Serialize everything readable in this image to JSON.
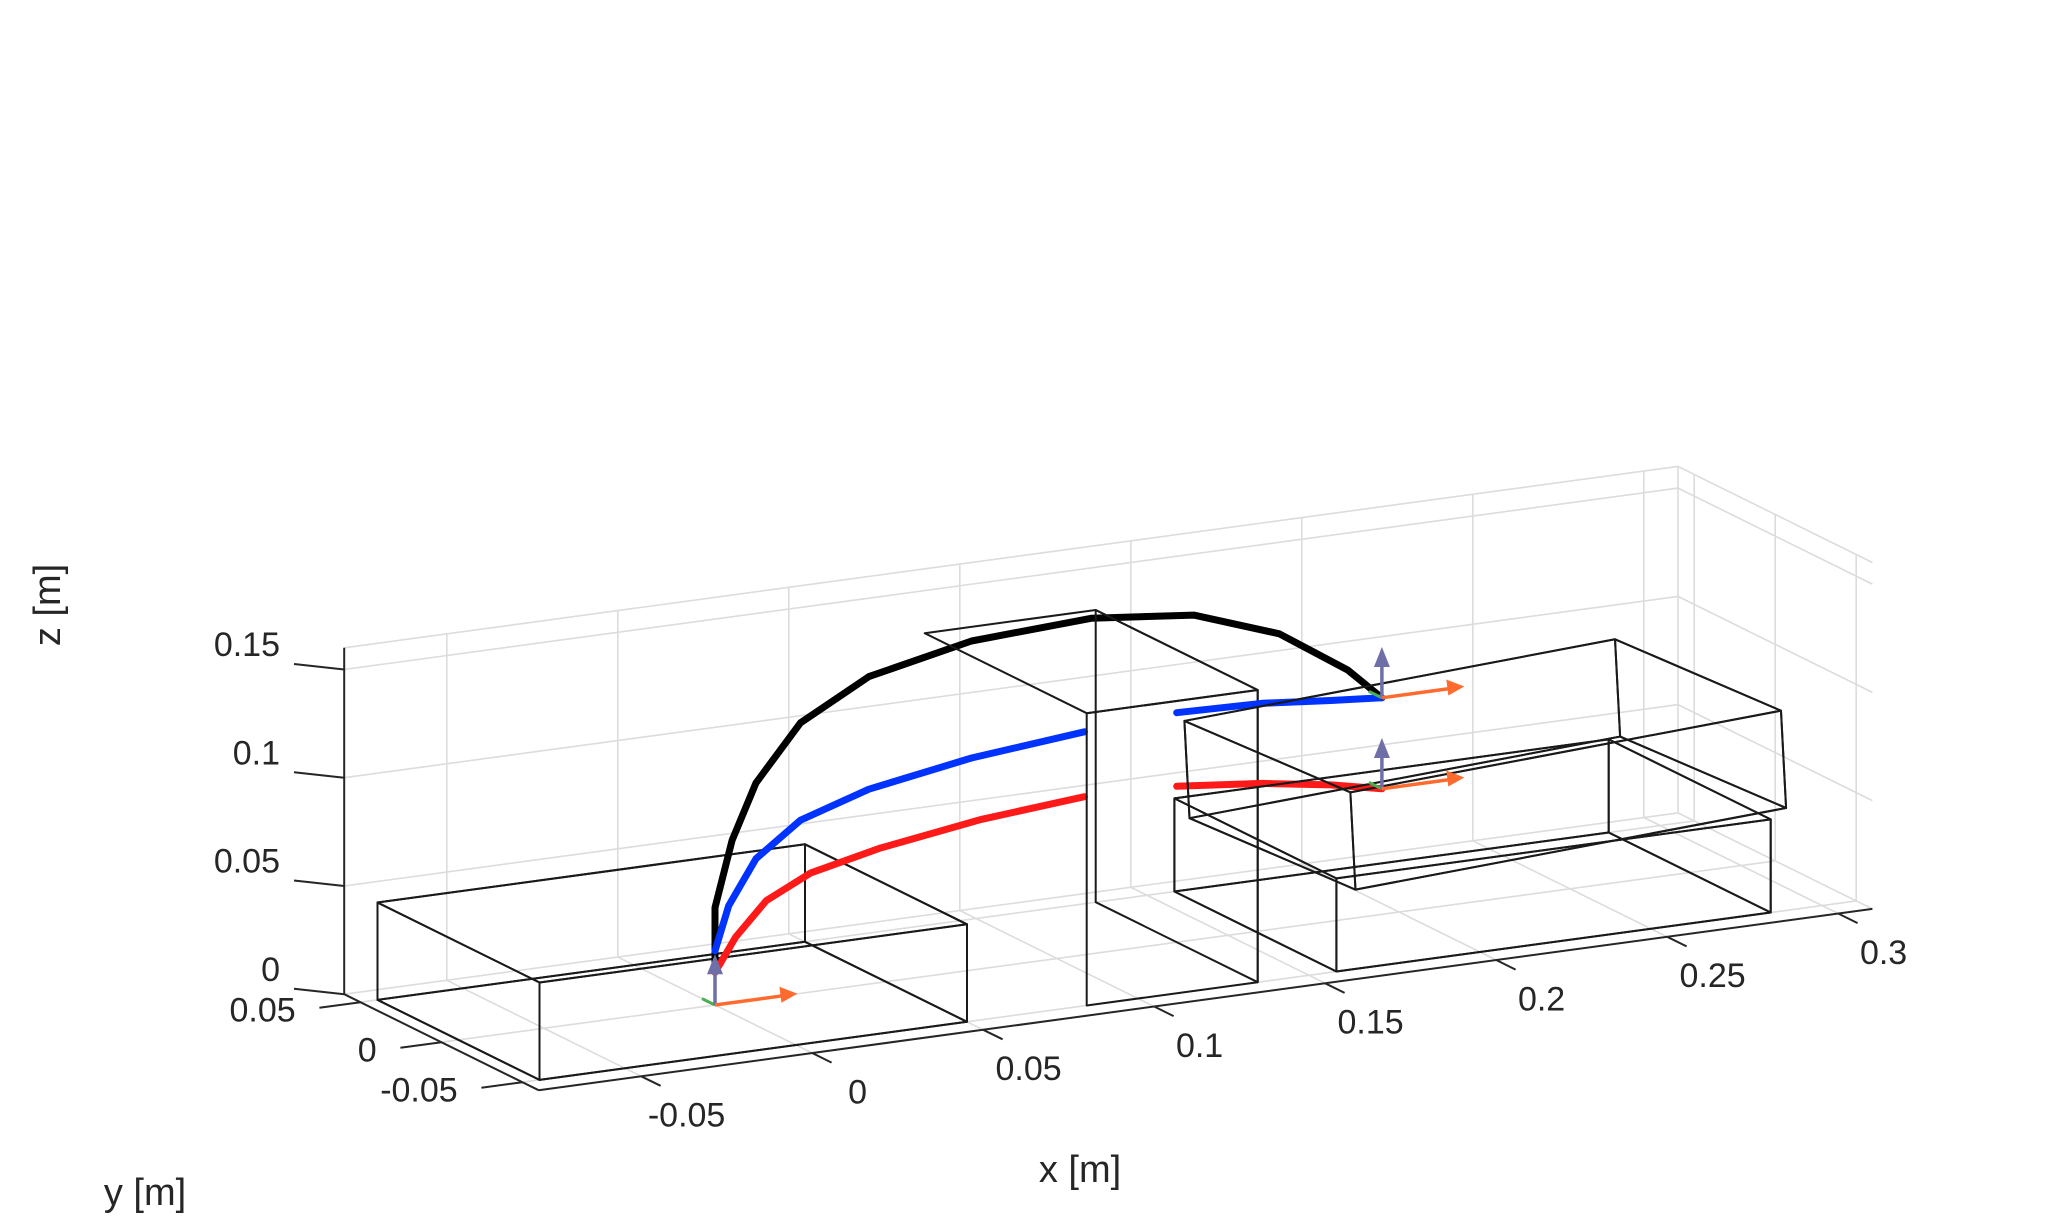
{
  "chart_data": {
    "type": "line",
    "projection": "3d",
    "xlabel": "x [m]",
    "ylabel": "y [m]",
    "zlabel": "z [m]",
    "xlim": [
      -0.08,
      0.31
    ],
    "ylim": [
      -0.06,
      0.06
    ],
    "zlim": [
      0,
      0.16
    ],
    "x_ticks": [
      "-0.05",
      "0",
      "0.05",
      "0.1",
      "0.15",
      "0.2",
      "0.25",
      "0.3"
    ],
    "y_ticks": [
      "0.05",
      "0",
      "-0.05"
    ],
    "z_ticks": [
      "0.15",
      "0.1",
      "0.05",
      "0"
    ],
    "grid": true,
    "colors": {
      "box_fill": "#e8a420",
      "obstacle_fill": "#cccccc",
      "edge": "#1a1a1a",
      "frame_z": "#6f6fa8",
      "frame_x": "#ff6a2e",
      "frame_y": "#4caf50"
    },
    "series": [
      {
        "color": "#000000",
        "points": [
          [
            0.0,
            0.0,
            0.02
          ],
          [
            0.0,
            0.0,
            0.045
          ],
          [
            0.005,
            0.0,
            0.075
          ],
          [
            0.012,
            0.0,
            0.1
          ],
          [
            0.025,
            0.0,
            0.125
          ],
          [
            0.045,
            0.0,
            0.142
          ],
          [
            0.075,
            0.0,
            0.152
          ],
          [
            0.11,
            0.0,
            0.155
          ],
          [
            0.14,
            0.0,
            0.15
          ],
          [
            0.165,
            0.0,
            0.136
          ],
          [
            0.185,
            0.0,
            0.115
          ],
          [
            0.195,
            0.0,
            0.1
          ]
        ]
      },
      {
        "color": "#0033ff",
        "points": [
          [
            0.0,
            0.0,
            0.025
          ],
          [
            0.004,
            0.0,
            0.045
          ],
          [
            0.012,
            0.0,
            0.065
          ],
          [
            0.025,
            0.0,
            0.08
          ],
          [
            0.045,
            0.0,
            0.09
          ],
          [
            0.075,
            0.0,
            0.098
          ],
          [
            0.108,
            0.0,
            0.103
          ]
        ],
        "points_after": [
          [
            0.135,
            0.0,
            0.106
          ],
          [
            0.16,
            0.0,
            0.105
          ],
          [
            0.18,
            0.0,
            0.102
          ],
          [
            0.195,
            0.0,
            0.1
          ]
        ]
      },
      {
        "color": "#ff1a1a",
        "points": [
          [
            0.0,
            0.0,
            0.015
          ],
          [
            0.006,
            0.0,
            0.03
          ],
          [
            0.015,
            0.0,
            0.045
          ],
          [
            0.028,
            0.0,
            0.055
          ],
          [
            0.048,
            0.0,
            0.062
          ],
          [
            0.078,
            0.0,
            0.069
          ],
          [
            0.108,
            0.0,
            0.073
          ]
        ],
        "points_after": [
          [
            0.135,
            0.0,
            0.072
          ],
          [
            0.16,
            0.0,
            0.068
          ],
          [
            0.18,
            0.0,
            0.063
          ],
          [
            0.195,
            0.0,
            0.058
          ]
        ]
      }
    ],
    "boxes": [
      {
        "kind": "start",
        "x": [
          -0.075,
          0.05
        ],
        "y": [
          -0.05,
          0.05
        ],
        "z": [
          0,
          0.045
        ]
      },
      {
        "kind": "obstacle",
        "x": [
          0.085,
          0.135
        ],
        "y": [
          -0.05,
          0.05
        ],
        "z": [
          0,
          0.135
        ]
      },
      {
        "kind": "goal_lower",
        "x": [
          0.158,
          0.285
        ],
        "y": [
          -0.05,
          0.05
        ],
        "z": [
          0,
          0.043
        ]
      },
      {
        "kind": "goal_upper",
        "x": [
          0.158,
          0.285
        ],
        "y": [
          -0.05,
          0.05
        ],
        "z": [
          0.043,
          0.088
        ],
        "tilted": true
      }
    ],
    "frames": [
      {
        "at": [
          0.0,
          0.0,
          0.0
        ]
      },
      {
        "at": [
          0.195,
          0.0,
          0.1
        ]
      },
      {
        "at": [
          0.195,
          0.0,
          0.058
        ]
      }
    ]
  }
}
